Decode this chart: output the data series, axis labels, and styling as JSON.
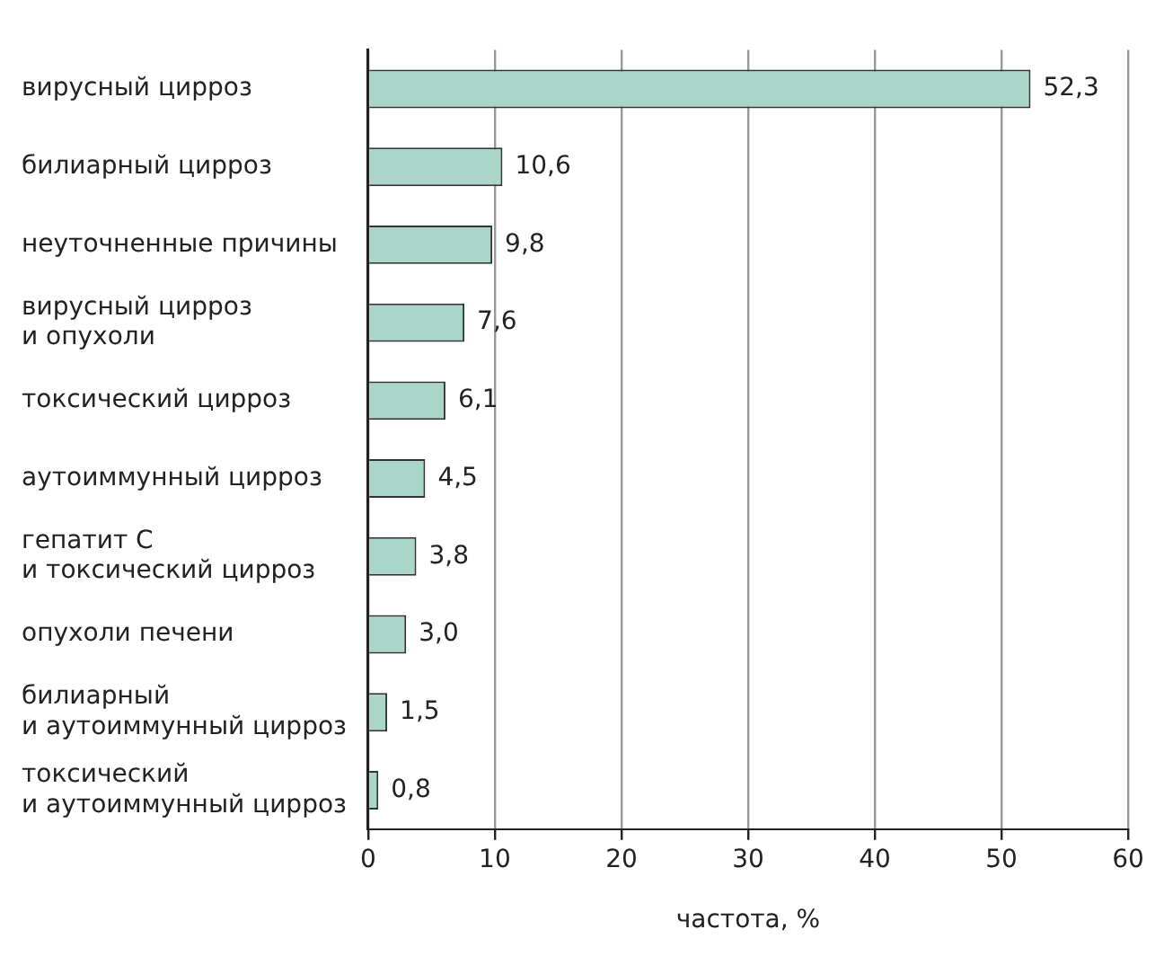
{
  "chart_data": {
    "type": "bar",
    "orientation": "horizontal",
    "xlabel": "частота, %",
    "categories": [
      "вирусный цирроз",
      "билиарный цирроз",
      "неуточненные причины",
      "вирусный цирроз\nи опухоли",
      "токсический цирроз",
      "аутоиммунный цирроз",
      "гепатит С\nи токсический цирроз",
      "опухоли печени",
      "билиарный\nи аутоиммунный цирроз",
      "токсический\nи аутоиммунный цирроз"
    ],
    "values": [
      52.3,
      10.6,
      9.8,
      7.6,
      6.1,
      4.5,
      3.8,
      3.0,
      1.5,
      0.8
    ],
    "value_labels": [
      "52,3",
      "10,6",
      "9,8",
      "7,6",
      "6,1",
      "4,5",
      "3,8",
      "3,0",
      "1,5",
      "0,8"
    ],
    "color": "#a9d6c8",
    "xlim": [
      0,
      60
    ],
    "xticks": [
      0,
      10,
      20,
      30,
      40,
      50,
      60
    ],
    "grid": "x"
  }
}
